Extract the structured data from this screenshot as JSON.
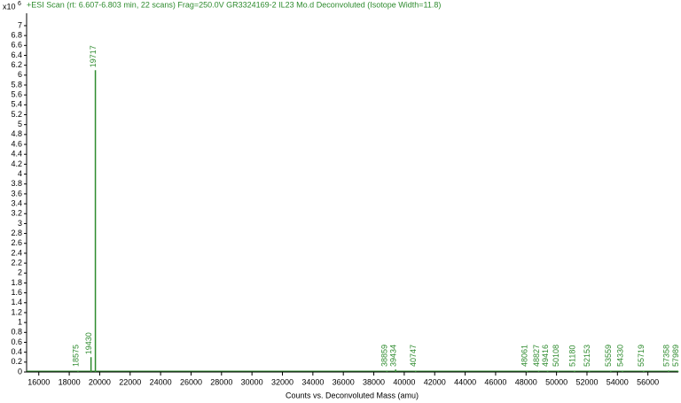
{
  "chart_data": {
    "type": "spectrum",
    "title": "+ESI Scan (rt: 6.607-6.803 min, 22 scans) Frag=250.0V GR3324169-2 IL23 Mo.d  Deconvoluted (Isotope Width=11.8)",
    "y_multiplier": "x10",
    "y_exponent": "6",
    "x_label": "Counts vs. Deconvoluted Mass (amu)",
    "color": "#2e8b2e",
    "x": [
      18575,
      19430,
      19717,
      38859,
      39434,
      40747,
      48061,
      48827,
      49416,
      50108,
      51180,
      52153,
      53559,
      54330,
      55719,
      57358,
      57989
    ],
    "values": [
      0.02,
      0.3,
      6.1,
      0.02,
      0.05,
      0.02,
      0.01,
      0.01,
      0.01,
      0.01,
      0.01,
      0.01,
      0.01,
      0.01,
      0.01,
      0.03,
      0.01
    ],
    "xlim": [
      15200,
      58000
    ],
    "ylim": [
      0,
      7.25
    ],
    "xticks": [
      16000,
      18000,
      20000,
      22000,
      24000,
      26000,
      28000,
      30000,
      32000,
      34000,
      36000,
      38000,
      40000,
      42000,
      44000,
      46000,
      48000,
      50000,
      52000,
      54000,
      56000
    ],
    "yticks": [
      0,
      0.2,
      0.4,
      0.6,
      0.8,
      1,
      1.2,
      1.4,
      1.6,
      1.8,
      2,
      2.2,
      2.4,
      2.6,
      2.8,
      3,
      3.2,
      3.4,
      3.6,
      3.8,
      4,
      4.2,
      4.4,
      4.6,
      4.8,
      5,
      5.2,
      5.4,
      5.6,
      5.8,
      6,
      6.2,
      6.4,
      6.6,
      6.8,
      7
    ]
  }
}
